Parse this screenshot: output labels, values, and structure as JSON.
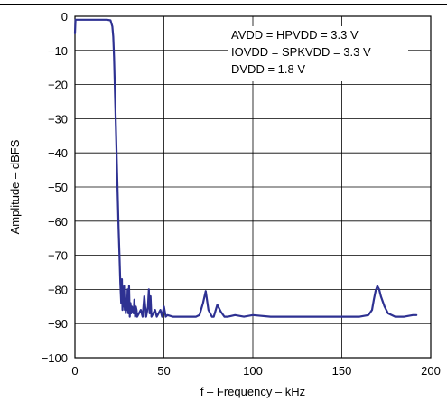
{
  "chart_data": {
    "type": "line",
    "title": "",
    "xlabel": "f – Frequency – kHz",
    "ylabel": "Amplitude – dBFS",
    "xlim": [
      0,
      200
    ],
    "ylim": [
      -100,
      0
    ],
    "x_ticks": [
      0,
      50,
      100,
      150,
      200
    ],
    "x_tick_labels": [
      "0",
      "50",
      "100",
      "150",
      "200"
    ],
    "y_ticks": [
      0,
      -10,
      -20,
      -30,
      -40,
      -50,
      -60,
      -70,
      -80,
      -90,
      -100
    ],
    "y_tick_labels": [
      "0",
      "−10",
      "−20",
      "−30",
      "−40",
      "−50",
      "−60",
      "−70",
      "−80",
      "−90",
      "−100"
    ],
    "grid": true,
    "line_color": "#2e3192",
    "annotations": [
      "AVDD = HPVDD = 3.3 V",
      "IOVDD = SPKVDD = 3.3 V",
      "DVDD = 1.8 V"
    ],
    "series": [
      {
        "x": [
          0,
          0.3,
          1,
          5,
          10,
          15,
          18,
          20,
          21,
          21.5,
          22,
          22.5,
          23,
          23.5,
          24,
          24.5,
          25,
          25.5,
          26,
          26.4,
          26.7,
          27,
          27.3,
          27.6,
          28,
          28.3,
          28.6,
          29,
          29.3,
          29.6,
          30,
          30.4,
          30.8,
          31.2,
          31.6,
          32,
          32.5,
          33,
          33.4,
          33.8,
          34.2,
          34.6,
          35,
          36,
          37,
          38,
          39,
          40,
          41,
          41.5,
          42,
          42.5,
          43,
          44,
          45,
          46,
          47,
          48,
          49,
          50,
          51,
          52,
          55,
          60,
          65,
          68,
          70,
          72,
          73.5,
          75,
          77,
          78,
          80,
          82,
          84,
          86,
          90,
          95,
          100,
          110,
          120,
          130,
          140,
          150,
          160,
          165,
          167,
          168,
          169,
          170,
          171,
          172,
          174,
          176,
          178,
          180,
          185,
          190,
          192
        ],
        "y": [
          -5,
          -1,
          -1,
          -1,
          -1,
          -1,
          -1,
          -1.2,
          -3,
          -6,
          -12,
          -22,
          -32,
          -42,
          -52,
          -62,
          -70,
          -78,
          -84,
          -77,
          -86,
          -80,
          -85,
          -79,
          -86,
          -83,
          -87,
          -82,
          -86,
          -80,
          -87,
          -79,
          -88,
          -84,
          -87,
          -85,
          -86,
          -87,
          -83,
          -88,
          -85,
          -86,
          -88,
          -87,
          -86,
          -88,
          -82,
          -88,
          -85,
          -80,
          -87,
          -82,
          -88,
          -87,
          -86,
          -88,
          -87,
          -86,
          -88,
          -85,
          -88,
          -87.5,
          -88,
          -88,
          -88,
          -88,
          -87.5,
          -84,
          -80.5,
          -86,
          -88,
          -88,
          -84.5,
          -86.5,
          -88,
          -88,
          -87.5,
          -88,
          -87.5,
          -88,
          -88,
          -88,
          -88,
          -88,
          -88,
          -87.5,
          -86,
          -83,
          -80.5,
          -79,
          -80,
          -82,
          -85,
          -87,
          -87.5,
          -88,
          -88,
          -87.5,
          -87.5
        ]
      }
    ]
  }
}
